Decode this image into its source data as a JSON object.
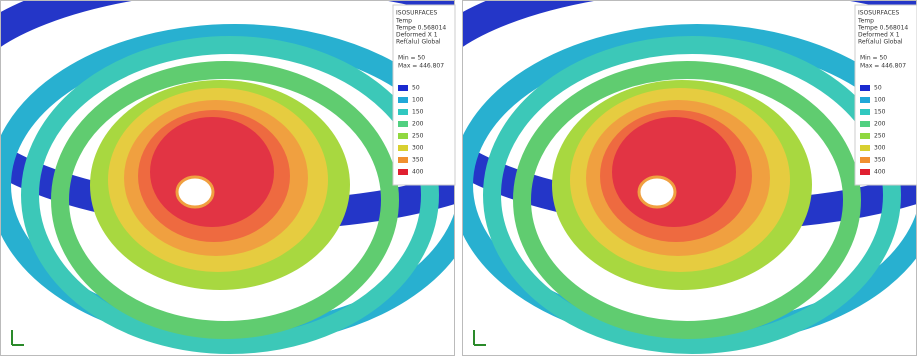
{
  "panels": [
    {
      "legend": {
        "title": "ISOSURFACES",
        "info": [
          "Temp",
          "Tempe 0.568014",
          "Deformed X 1",
          "Ref(alu) Global"
        ],
        "min": "Min = 50",
        "max": "Max = 446.807",
        "levels": [
          "50",
          "100",
          "150",
          "200",
          "250",
          "300",
          "350",
          "400"
        ]
      }
    },
    {
      "legend": {
        "title": "ISOSURFACES",
        "info": [
          "Temp",
          "Tempe 0.568014",
          "Deformed X 1",
          "Ref(alu) Global"
        ],
        "min": "Min = 50",
        "max": "Max = 446.807",
        "levels": [
          "50",
          "100",
          "150",
          "200",
          "250",
          "300",
          "350",
          "400"
        ]
      }
    }
  ]
}
